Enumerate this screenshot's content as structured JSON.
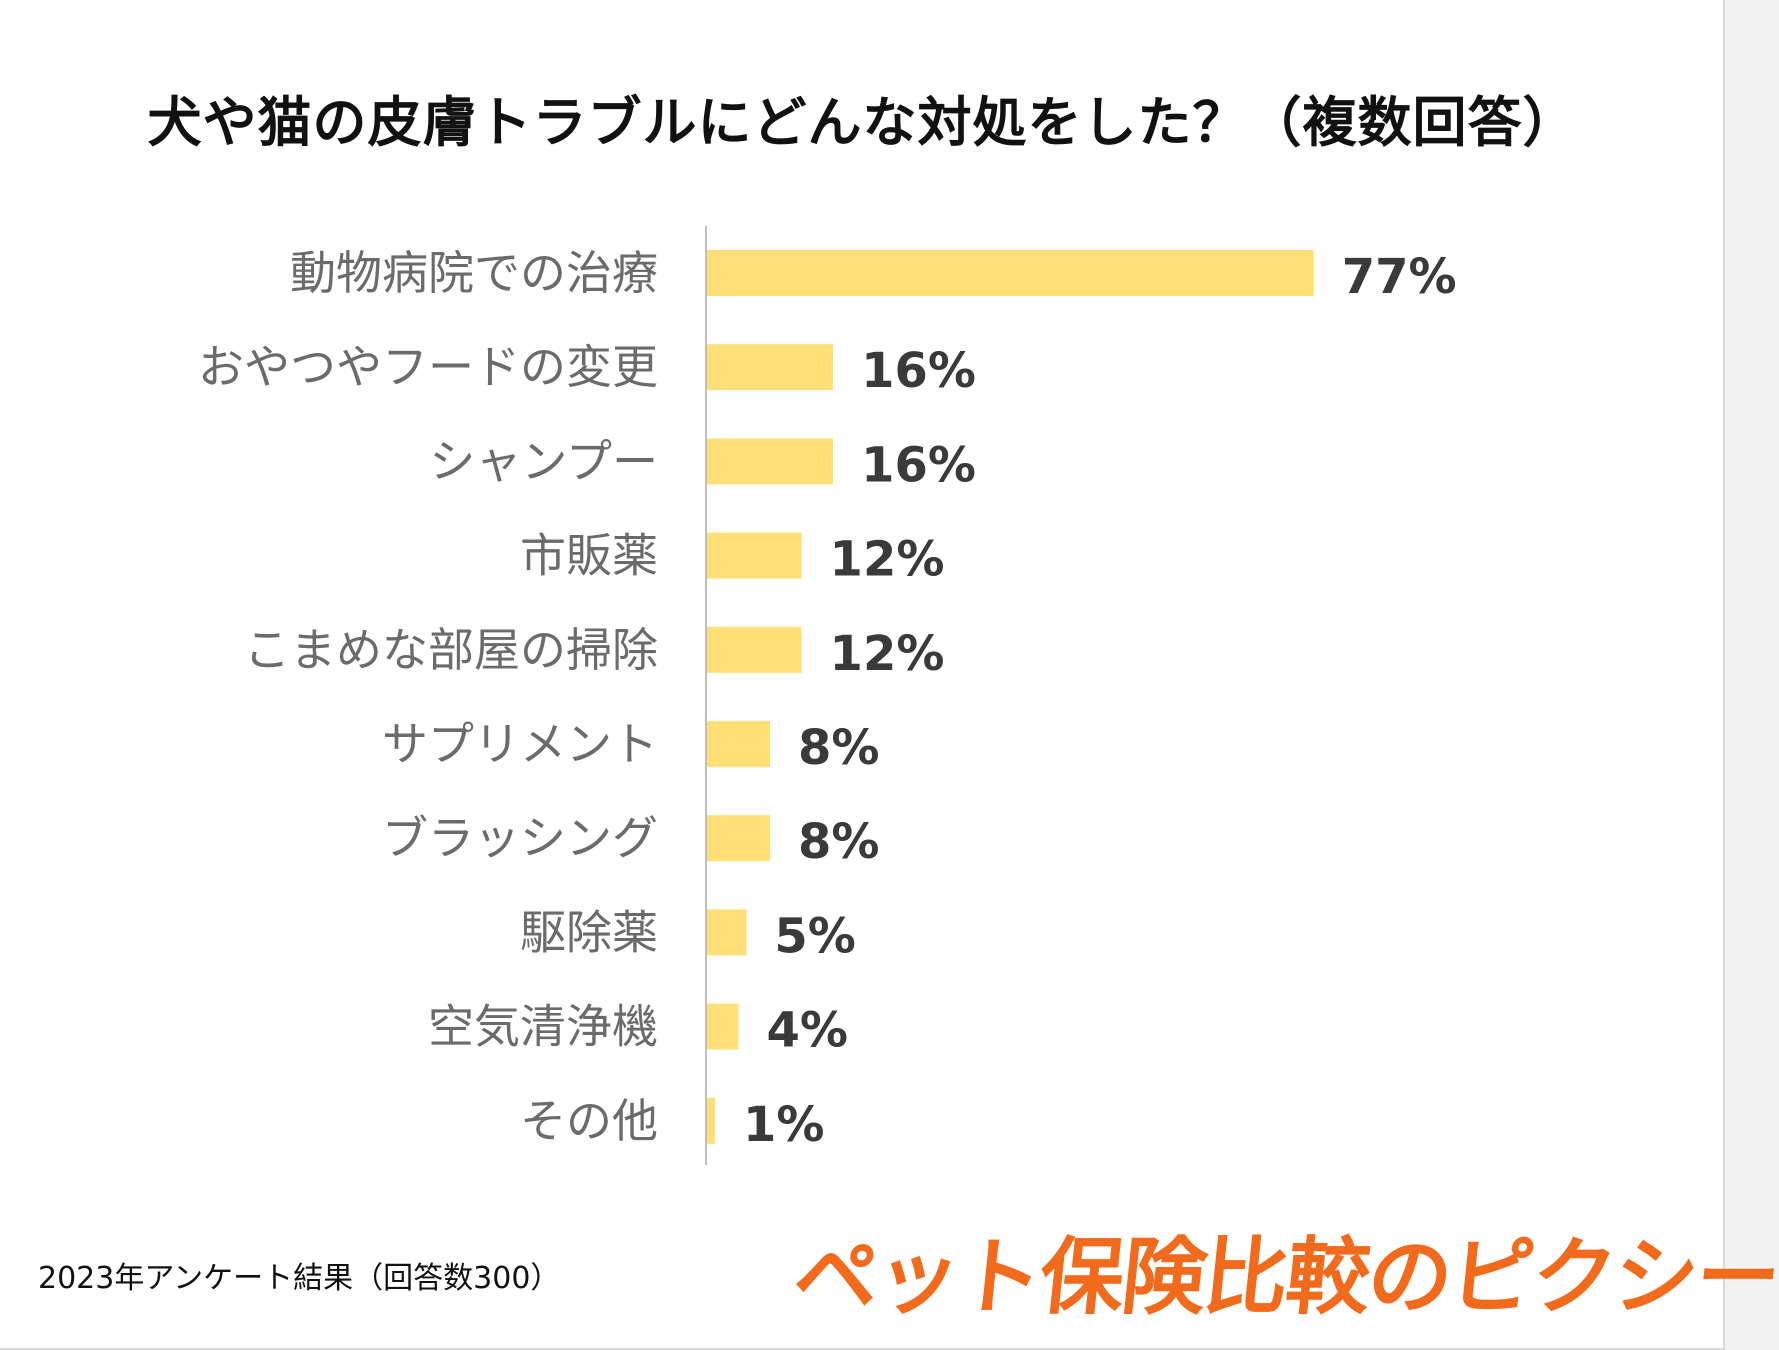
{
  "title": "犬や猫の皮膚トラブルにどんな対処をした？（複数回答）",
  "footnote": "2023年アンケート結果（回答数300）",
  "brand": "ペット保険比較のピクシー",
  "colors": {
    "bar": "#FFDF78",
    "axis": "#bfbfbf",
    "brand": "#F26A1B"
  },
  "chart_data": {
    "type": "bar",
    "orientation": "horizontal",
    "title": "犬や猫の皮膚トラブルにどんな対処をした？（複数回答）",
    "categories": [
      "動物病院での治療",
      "おやつやフードの変更",
      "シャンプー",
      "市販薬",
      "こまめな部屋の掃除",
      "サプリメント",
      "ブラッシング",
      "駆除薬",
      "空気清浄機",
      "その他"
    ],
    "values": [
      77,
      16,
      16,
      12,
      12,
      8,
      8,
      5,
      4,
      1
    ],
    "value_labels": [
      "77%",
      "16%",
      "16%",
      "12%",
      "12%",
      "8%",
      "8%",
      "5%",
      "4%",
      "1%"
    ],
    "unit": "%",
    "xlim": [
      0,
      100
    ],
    "grid": false,
    "legend": "none"
  }
}
